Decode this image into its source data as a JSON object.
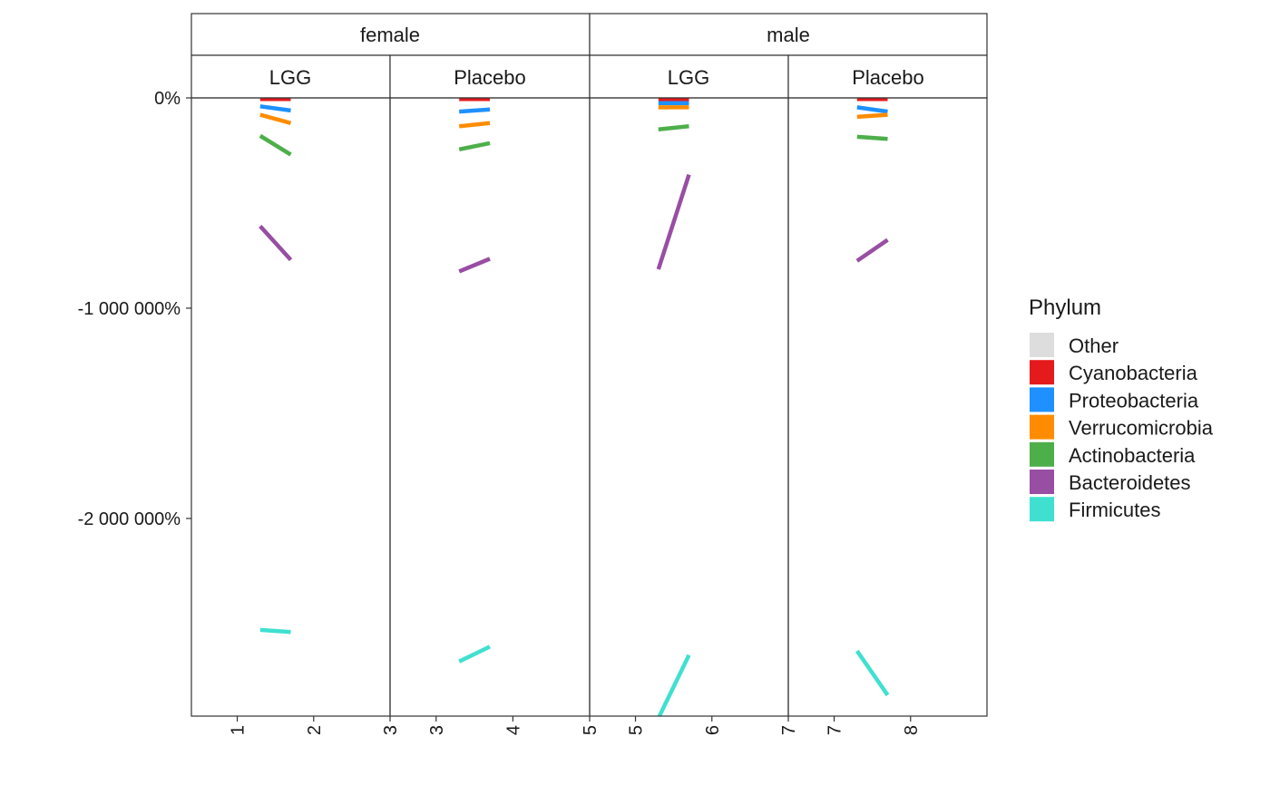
{
  "chart_data": {
    "type": "line",
    "facet_top": [
      "female",
      "male"
    ],
    "facet_sub": [
      "LGG",
      "Placebo"
    ],
    "y_ticks": [
      {
        "value": 0,
        "label": "0%"
      },
      {
        "value": -1000000,
        "label": "-1 000 000%"
      },
      {
        "value": -2000000,
        "label": "-2 000 000%"
      }
    ],
    "ylim": [
      -2940000,
      0
    ],
    "legend": {
      "title": "Phylum",
      "placement": "right",
      "entries": [
        {
          "label": "Other",
          "color": "#dddddd"
        },
        {
          "label": "Cyanobacteria",
          "color": "#e41a1c"
        },
        {
          "label": "Proteobacteria",
          "color": "#1e90ff"
        },
        {
          "label": "Verrucomicrobia",
          "color": "#ff8c00"
        },
        {
          "label": "Actinobacteria",
          "color": "#4daf4a"
        },
        {
          "label": "Bacteroidetes",
          "color": "#984ea3"
        },
        {
          "label": "Firmicutes",
          "color": "#40e0d0"
        }
      ]
    },
    "panels": [
      {
        "sex": "female",
        "group": "LGG",
        "x_ticks": [
          {
            "value": 1,
            "label": "1"
          },
          {
            "value": 2,
            "label": "2"
          },
          {
            "value": 3,
            "label": "3"
          }
        ],
        "xlim": [
          0.4,
          3
        ],
        "series": [
          {
            "name": "Cyanobacteria",
            "x": [
              1.3,
              1.7
            ],
            "y": [
              -5000,
              -5000
            ]
          },
          {
            "name": "Proteobacteria",
            "x": [
              1.3,
              1.7
            ],
            "y": [
              -40000,
              -60000
            ]
          },
          {
            "name": "Verrucomicrobia",
            "x": [
              1.3,
              1.7
            ],
            "y": [
              -80000,
              -120000
            ]
          },
          {
            "name": "Actinobacteria",
            "x": [
              1.3,
              1.7
            ],
            "y": [
              -180000,
              -270000
            ]
          },
          {
            "name": "Bacteroidetes",
            "x": [
              1.3,
              1.7
            ],
            "y": [
              -610000,
              -770000
            ]
          },
          {
            "name": "Firmicutes",
            "x": [
              1.3,
              1.7
            ],
            "y": [
              -2530000,
              -2540000
            ]
          }
        ]
      },
      {
        "sex": "female",
        "group": "Placebo",
        "x_ticks": [
          {
            "value": 3,
            "label": "3"
          },
          {
            "value": 4,
            "label": "4"
          },
          {
            "value": 5,
            "label": "5"
          }
        ],
        "xlim": [
          2.4,
          5
        ],
        "series": [
          {
            "name": "Cyanobacteria",
            "x": [
              3.3,
              3.7
            ],
            "y": [
              -5000,
              -5000
            ]
          },
          {
            "name": "Proteobacteria",
            "x": [
              3.3,
              3.7
            ],
            "y": [
              -65000,
              -55000
            ]
          },
          {
            "name": "Verrucomicrobia",
            "x": [
              3.3,
              3.7
            ],
            "y": [
              -135000,
              -120000
            ]
          },
          {
            "name": "Actinobacteria",
            "x": [
              3.3,
              3.7
            ],
            "y": [
              -245000,
              -215000
            ]
          },
          {
            "name": "Bacteroidetes",
            "x": [
              3.3,
              3.7
            ],
            "y": [
              -825000,
              -765000
            ]
          },
          {
            "name": "Firmicutes",
            "x": [
              3.3,
              3.7
            ],
            "y": [
              -2680000,
              -2610000
            ]
          }
        ]
      },
      {
        "sex": "male",
        "group": "LGG",
        "x_ticks": [
          {
            "value": 5,
            "label": "5"
          },
          {
            "value": 6,
            "label": "6"
          },
          {
            "value": 7,
            "label": "7"
          }
        ],
        "xlim": [
          4.4,
          7
        ],
        "series": [
          {
            "name": "Cyanobacteria",
            "x": [
              5.3,
              5.7
            ],
            "y": [
              -5000,
              -5000
            ]
          },
          {
            "name": "Proteobacteria",
            "x": [
              5.3,
              5.7
            ],
            "y": [
              -25000,
              -25000
            ]
          },
          {
            "name": "Verrucomicrobia",
            "x": [
              5.3,
              5.7
            ],
            "y": [
              -45000,
              -45000
            ]
          },
          {
            "name": "Actinobacteria",
            "x": [
              5.3,
              5.7
            ],
            "y": [
              -150000,
              -135000
            ]
          },
          {
            "name": "Bacteroidetes",
            "x": [
              5.3,
              5.7
            ],
            "y": [
              -815000,
              -365000
            ]
          },
          {
            "name": "Firmicutes",
            "x": [
              5.3,
              5.7
            ],
            "y": [
              -2950000,
              -2650000
            ]
          }
        ]
      },
      {
        "sex": "male",
        "group": "Placebo",
        "x_ticks": [
          {
            "value": 7,
            "label": "7"
          },
          {
            "value": 8,
            "label": "8"
          }
        ],
        "xlim": [
          6.4,
          9
        ],
        "series": [
          {
            "name": "Cyanobacteria",
            "x": [
              7.3,
              7.7
            ],
            "y": [
              -5000,
              -5000
            ]
          },
          {
            "name": "Proteobacteria",
            "x": [
              7.3,
              7.7
            ],
            "y": [
              -45000,
              -65000
            ]
          },
          {
            "name": "Verrucomicrobia",
            "x": [
              7.3,
              7.7
            ],
            "y": [
              -90000,
              -80000
            ]
          },
          {
            "name": "Actinobacteria",
            "x": [
              7.3,
              7.7
            ],
            "y": [
              -185000,
              -195000
            ]
          },
          {
            "name": "Bacteroidetes",
            "x": [
              7.3,
              7.7
            ],
            "y": [
              -775000,
              -675000
            ]
          },
          {
            "name": "Firmicutes",
            "x": [
              7.3,
              7.7
            ],
            "y": [
              -2630000,
              -2840000
            ]
          }
        ]
      }
    ]
  }
}
